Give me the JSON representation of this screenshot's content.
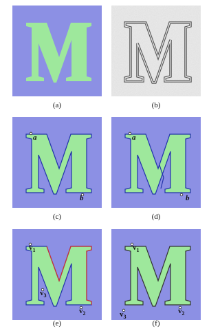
{
  "panels": [
    {
      "caption": "(a)",
      "labels": []
    },
    {
      "caption": "(b)",
      "labels": []
    },
    {
      "caption": "(c)",
      "labels": [
        {
          "text": "a"
        },
        {
          "text": "b"
        }
      ]
    },
    {
      "caption": "(d)",
      "labels": [
        {
          "text": "a"
        },
        {
          "text": "b"
        }
      ]
    },
    {
      "caption": "(e)",
      "labels": [
        {
          "text": "v",
          "sub": "1"
        },
        {
          "text": "v",
          "sub": "3"
        },
        {
          "text": "v",
          "sub": "2"
        }
      ]
    },
    {
      "caption": "(f)",
      "labels": [
        {
          "text": "v",
          "sub": "1"
        },
        {
          "text": "v",
          "sub": "3"
        },
        {
          "text": "v",
          "sub": "2"
        }
      ]
    }
  ]
}
